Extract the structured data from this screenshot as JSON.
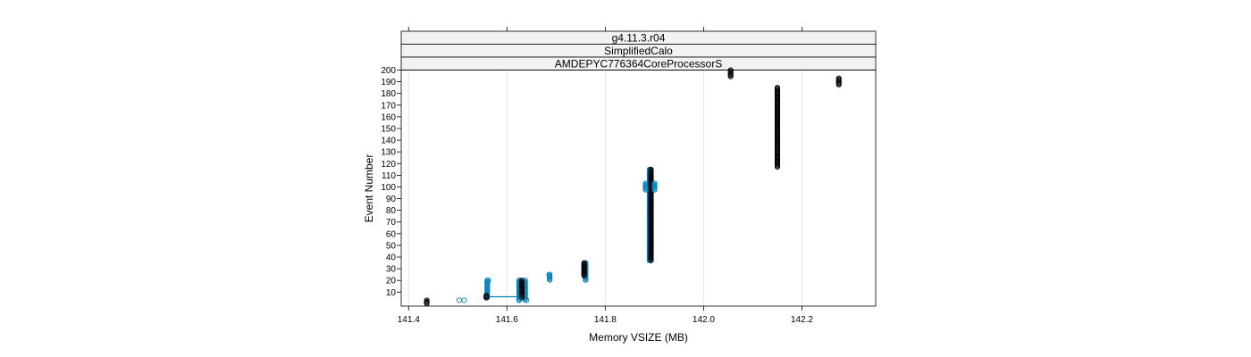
{
  "chart_data": {
    "type": "scatter",
    "strips": [
      "g4.11.3.r04",
      "SimplifiedCalo",
      "AMDEPYC776364CoreProcessorS"
    ],
    "xlabel": "Memory VSIZE (MB)",
    "ylabel": "Event Number",
    "xlim": [
      141.385,
      142.35
    ],
    "ylim": [
      -2,
      200
    ],
    "xticks": [
      "141.4",
      "141.6",
      "141.8",
      "142.0",
      "142.2"
    ],
    "yticks": [
      "10",
      "20",
      "30",
      "40",
      "50",
      "60",
      "70",
      "80",
      "90",
      "100",
      "110",
      "120",
      "130",
      "140",
      "150",
      "160",
      "170",
      "180",
      "190",
      "200"
    ],
    "grid": true,
    "colors": {
      "blue": "#0080bb",
      "black": "#000000",
      "green": "#3a9a3a"
    },
    "clusters": [
      {
        "x": 141.437,
        "y_min": 0,
        "y_max": 3,
        "color": "black"
      },
      {
        "x": 141.56,
        "y_min": 5,
        "y_max": 20,
        "color": "blue"
      },
      {
        "x": 141.558,
        "y_min": 5,
        "y_max": 7,
        "color": "black"
      },
      {
        "x": 141.625,
        "y_min": 3,
        "y_max": 20,
        "color": "blue"
      },
      {
        "x": 141.637,
        "y_min": 3,
        "y_max": 20,
        "color": "blue"
      },
      {
        "x": 141.63,
        "y_min": 5,
        "y_max": 20,
        "color": "black"
      },
      {
        "x": 141.687,
        "y_min": 20,
        "y_max": 25,
        "color": "blue"
      },
      {
        "x": 141.76,
        "y_min": 20,
        "y_max": 35,
        "color": "blue"
      },
      {
        "x": 141.757,
        "y_min": 24,
        "y_max": 35,
        "color": "black"
      },
      {
        "x": 141.89,
        "y_min": 37,
        "y_max": 115,
        "color": "blue"
      },
      {
        "x": 141.893,
        "y_min": 37,
        "y_max": 115,
        "color": "black"
      },
      {
        "x": 141.882,
        "y_min": 97,
        "y_max": 103,
        "color": "blue"
      },
      {
        "x": 141.9,
        "y_min": 97,
        "y_max": 103,
        "color": "blue"
      },
      {
        "x": 142.055,
        "y_min": 194,
        "y_max": 200,
        "color": "black"
      },
      {
        "x": 142.15,
        "y_min": 117,
        "y_max": 185,
        "color": "black"
      },
      {
        "x": 142.275,
        "y_min": 187,
        "y_max": 193,
        "color": "black"
      }
    ],
    "points": [
      {
        "x": 141.503,
        "y": 3,
        "color": "blue"
      },
      {
        "x": 141.513,
        "y": 3,
        "color": "blue"
      },
      {
        "x": 141.625,
        "y": 3,
        "color": "blue"
      },
      {
        "x": 141.64,
        "y": 3,
        "color": "blue"
      },
      {
        "x": 141.562,
        "y": 20,
        "color": "blue"
      },
      {
        "x": 141.686,
        "y": 25,
        "color": "blue"
      }
    ],
    "connectors": [
      {
        "x1": 141.56,
        "x2": 141.625,
        "y": 6,
        "color": "blue"
      }
    ]
  }
}
